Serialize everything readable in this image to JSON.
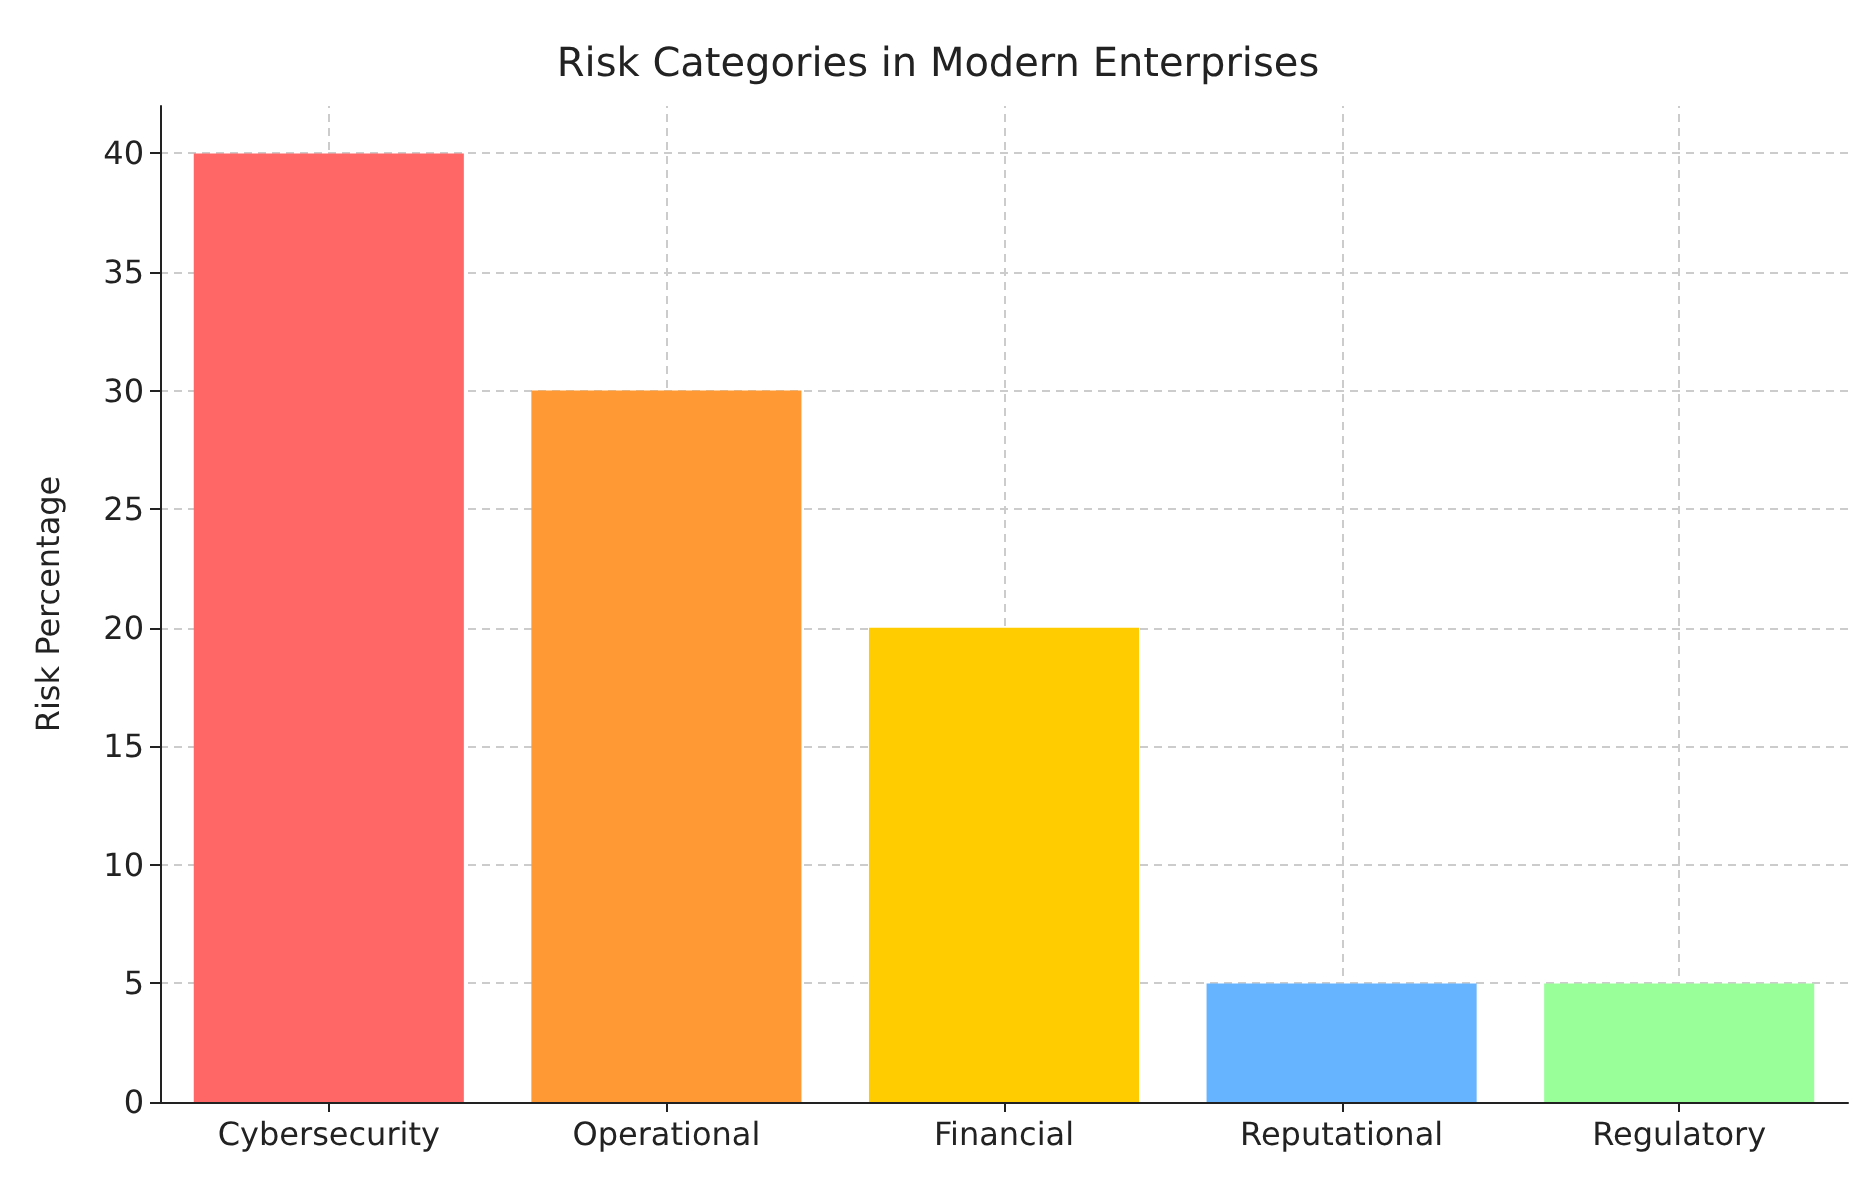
{
  "chart_data": {
    "type": "bar",
    "title": "Risk Categories in Modern Enterprises",
    "ylabel": "Risk Percentage",
    "categories": [
      "Cybersecurity",
      "Operational",
      "Financial",
      "Reputational",
      "Regulatory"
    ],
    "values": [
      40,
      30,
      20,
      5,
      5
    ],
    "colors": [
      "#ff6666",
      "#ff9933",
      "#ffcc00",
      "#66b3ff",
      "#99ff99"
    ],
    "ylim": [
      0,
      42
    ],
    "yticks": [
      0,
      5,
      10,
      15,
      20,
      25,
      30,
      35,
      40
    ],
    "grid": true
  }
}
